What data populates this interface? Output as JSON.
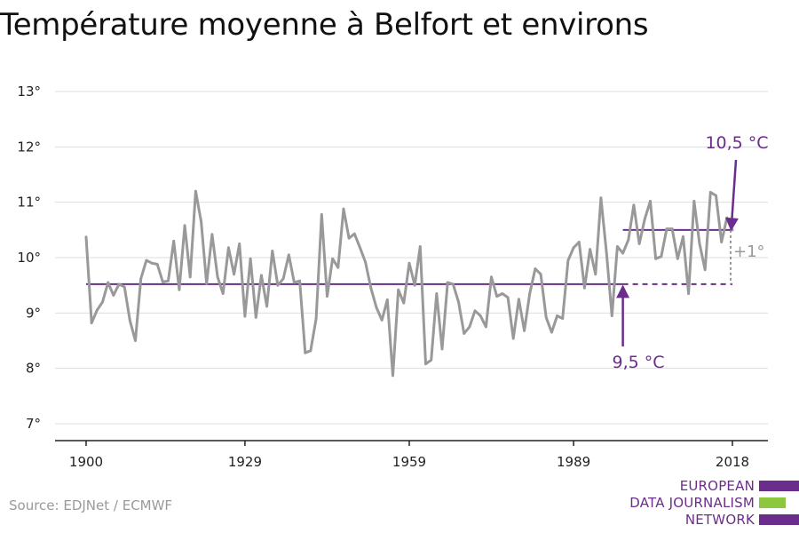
{
  "title": "Température moyenne à Belfort et environs",
  "source": "Source: EDJNet / ECMWF",
  "logo": {
    "lines": [
      "EUROPEAN",
      "DATA JOURNALISM",
      "NETWORK"
    ],
    "colors": {
      "purple": "#6b2d8c",
      "green": "#8dc63f"
    }
  },
  "chart_data": {
    "type": "line",
    "title": "Température moyenne à Belfort et environs",
    "xlabel": "",
    "ylabel": "",
    "xlim": [
      1900,
      2018
    ],
    "ylim": [
      7,
      13
    ],
    "grid": true,
    "x_ticks": [
      1900,
      1929,
      1959,
      1989,
      2018
    ],
    "x_tick_labels": [
      "1900",
      "1929",
      "1959",
      "1989",
      "2018"
    ],
    "y_ticks": [
      7,
      8,
      9,
      10,
      11,
      12,
      13
    ],
    "y_tick_labels": [
      "7°",
      "8°",
      "9°",
      "10°",
      "11°",
      "12°",
      "13°"
    ],
    "series": [
      {
        "name": "",
        "color": "#999999",
        "x_start": 1900,
        "values": [
          10.37,
          8.82,
          9.05,
          9.2,
          9.55,
          9.32,
          9.52,
          9.47,
          8.86,
          8.5,
          9.62,
          9.95,
          9.9,
          9.88,
          9.56,
          9.58,
          10.3,
          9.42,
          10.58,
          9.65,
          11.2,
          10.65,
          9.53,
          10.42,
          9.65,
          9.35,
          10.18,
          9.7,
          10.25,
          8.94,
          9.98,
          8.92,
          9.68,
          9.12,
          10.12,
          9.5,
          9.62,
          10.05,
          9.55,
          9.58,
          8.28,
          8.32,
          8.9,
          10.78,
          9.3,
          9.98,
          9.82,
          10.88,
          10.35,
          10.43,
          10.18,
          9.92,
          9.45,
          9.1,
          8.87,
          9.24,
          7.87,
          9.42,
          9.18,
          9.9,
          9.5,
          10.2,
          8.08,
          8.15,
          9.35,
          8.35,
          9.55,
          9.52,
          9.2,
          8.63,
          8.75,
          9.04,
          8.95,
          8.75,
          9.65,
          9.3,
          9.35,
          9.28,
          8.54,
          9.25,
          8.68,
          9.35,
          9.8,
          9.7,
          8.92,
          8.65,
          8.95,
          8.9,
          9.95,
          10.18,
          10.28,
          9.45,
          10.15,
          9.7,
          11.08,
          10.1,
          8.95,
          10.2,
          10.08,
          10.32,
          10.95,
          10.25,
          10.7,
          11.02,
          9.98,
          10.02,
          10.52,
          10.52,
          9.98,
          10.38,
          9.35,
          11.02,
          10.25,
          9.78,
          11.18,
          11.12,
          10.28,
          10.72,
          10.5
        ]
      }
    ],
    "reference_lines": [
      {
        "label": "9,5 °C",
        "value": 9.52,
        "x_from": 1900,
        "x_to": 1998,
        "dashed_to": 2018,
        "color": "#6b2d8c"
      },
      {
        "label": "10,5 °C",
        "value": 10.5,
        "x_from": 1998,
        "x_to": 2018,
        "color": "#6b2d8c"
      }
    ],
    "annotations": [
      {
        "text": "10,5 °C",
        "points_to": [
          2018,
          10.5
        ],
        "color": "#6b2d8c"
      },
      {
        "text": "9,5 °C",
        "points_to": [
          1998,
          9.52
        ],
        "color": "#6b2d8c"
      },
      {
        "text": "+1°",
        "color": "#999999"
      }
    ]
  }
}
